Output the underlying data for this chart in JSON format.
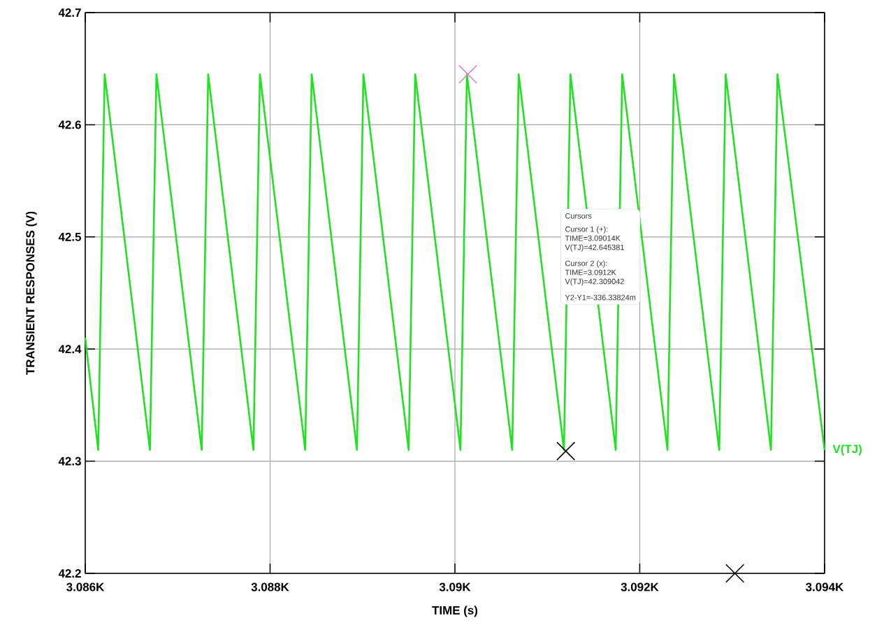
{
  "chart_data": {
    "type": "line",
    "xlabel": "TIME  (s)",
    "ylabel": "TRANSIENT RESPONSES  (V)",
    "xlim": [
      3086,
      3094
    ],
    "ylim": [
      42.2,
      42.7
    ],
    "xticks": [
      {
        "value": 3086,
        "label": "3.086K"
      },
      {
        "value": 3088,
        "label": "3.088K"
      },
      {
        "value": 3090,
        "label": "3.09K"
      },
      {
        "value": 3092,
        "label": "3.092K"
      },
      {
        "value": 3094,
        "label": "3.094K"
      }
    ],
    "yticks": [
      42.2,
      42.3,
      42.4,
      42.5,
      42.6,
      42.7
    ],
    "grid": true,
    "annotations": [
      "Cursors",
      "Cursor 1 (+):",
      "TIME=3.09014K",
      "V(TJ)=42.645381",
      "Cursor 2 (x):",
      "TIME=3.0912K",
      "V(TJ)=42.309042",
      "Y2-Y1=-336.33824m"
    ],
    "series": [
      {
        "name": "V(TJ)",
        "color": "#22e022",
        "marker": "none",
        "x": [
          3086,
          3086.14,
          3086.21,
          3086.7,
          3086.77,
          3087.26,
          3087.33,
          3087.82,
          3087.89,
          3088.38,
          3088.45,
          3088.94,
          3089.01,
          3089.5,
          3089.57,
          3090.06,
          3090.13,
          3090.62,
          3090.69,
          3091.18,
          3091.25,
          3091.74,
          3091.81,
          3092.3,
          3092.37,
          3092.86,
          3092.93,
          3093.42,
          3093.49,
          3094
        ],
        "values": [
          42.41,
          42.31,
          42.645,
          42.31,
          42.645,
          42.31,
          42.645,
          42.31,
          42.645,
          42.31,
          42.645,
          42.31,
          42.645,
          42.31,
          42.645,
          42.31,
          42.645,
          42.31,
          42.645,
          42.31,
          42.645,
          42.31,
          42.645,
          42.31,
          42.645,
          42.31,
          42.645,
          42.31,
          42.645,
          42.31
        ]
      },
      {
        "type": "scatter",
        "color": "#d080d0",
        "marker": "cross",
        "x": [
          3090.14
        ],
        "values": [
          42.645
        ]
      },
      {
        "type": "scatter",
        "color": "#000000",
        "marker": "cross",
        "x": [
          3091.2,
          3093.03
        ],
        "values": [
          42.309,
          42.2
        ]
      }
    ]
  }
}
